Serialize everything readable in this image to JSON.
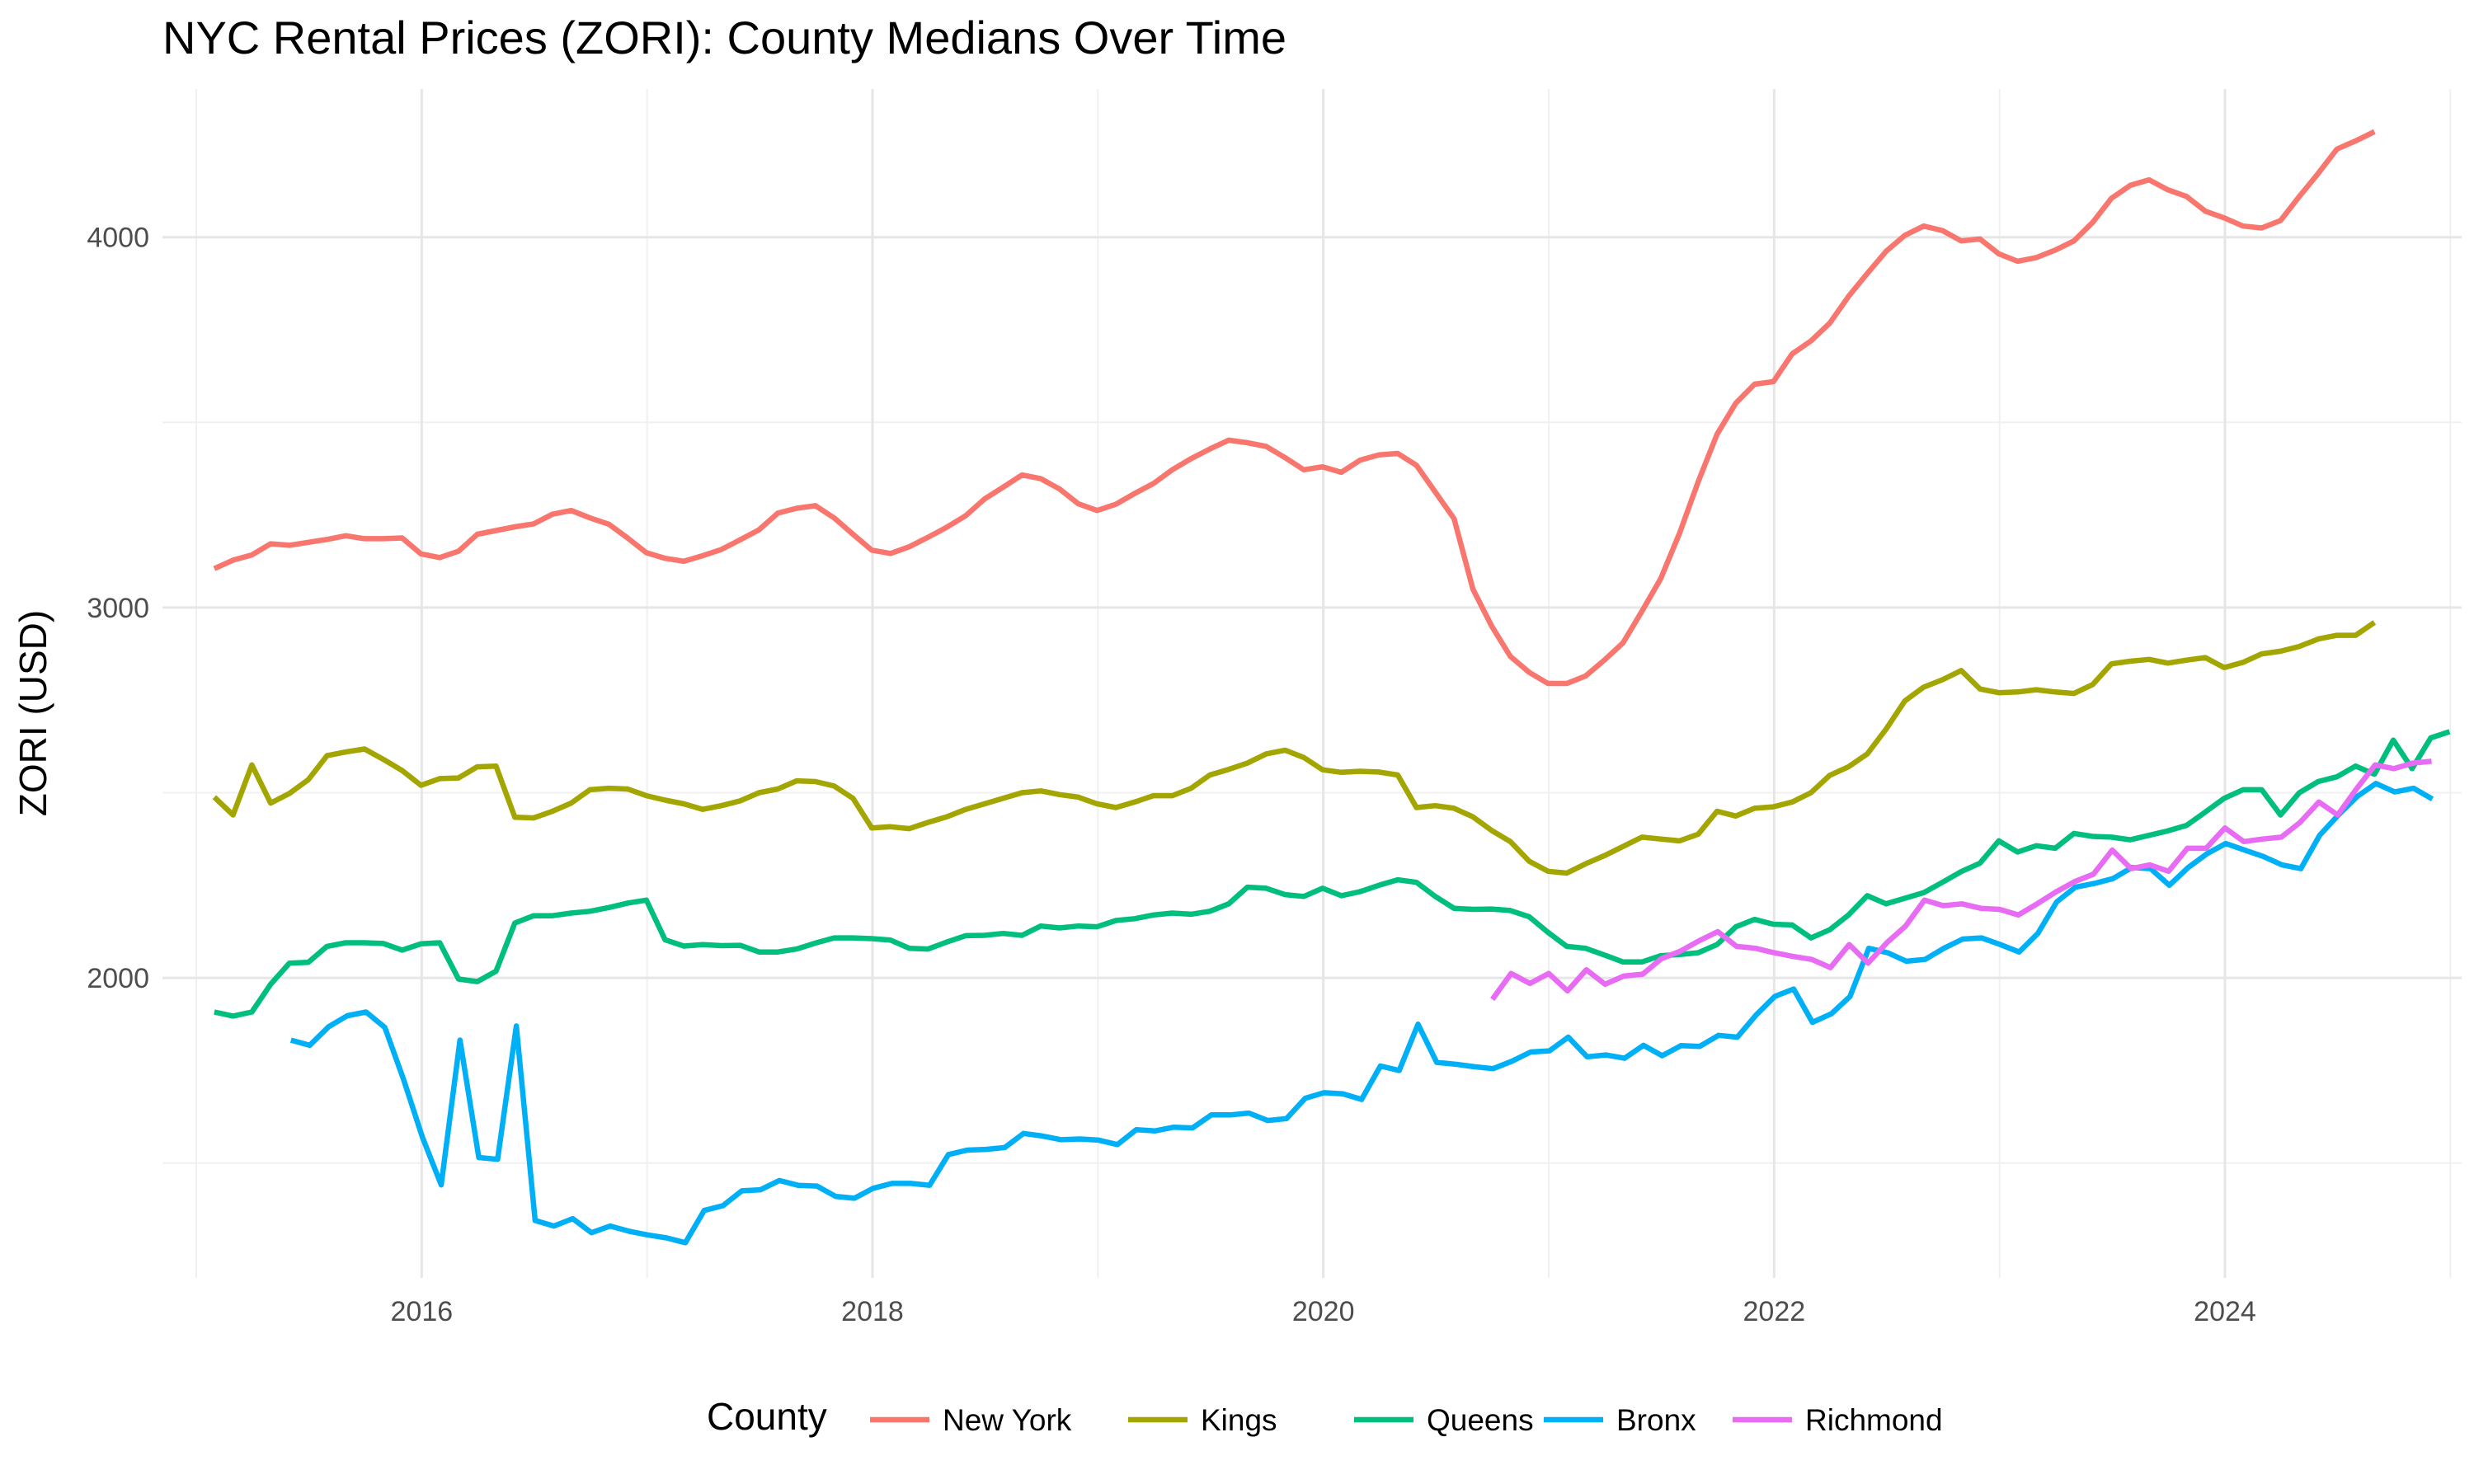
{
  "chart_data": {
    "type": "line",
    "title": "NYC Rental Prices (ZORI): County Medians Over Time",
    "xlabel": "",
    "ylabel": "ZORI (USD)",
    "xlim": [
      2014.85,
      2025.05
    ],
    "ylim": [
      1190,
      4400
    ],
    "x_ticks": [
      2016,
      2018,
      2020,
      2022,
      2024
    ],
    "x_tick_labels": [
      "2016",
      "2018",
      "2020",
      "2022",
      "2024"
    ],
    "y_ticks": [
      2000,
      3000,
      4000
    ],
    "y_tick_labels": [
      "2000",
      "3000",
      "4000"
    ],
    "grid": true,
    "legend": {
      "title": "County",
      "position": "bottom"
    },
    "series": [
      {
        "name": "New York",
        "color": "#F8766D",
        "start": 2015.08,
        "values": [
          3105,
          3128,
          3142,
          3172,
          3168,
          3176,
          3184,
          3194,
          3186,
          3186,
          3188,
          3145,
          3135,
          3152,
          3198,
          3208,
          3218,
          3226,
          3252,
          3262,
          3242,
          3225,
          3188,
          3148,
          3133,
          3125,
          3140,
          3157,
          3183,
          3210,
          3255,
          3268,
          3275,
          3242,
          3198,
          3155,
          3146,
          3164,
          3190,
          3217,
          3248,
          3293,
          3325,
          3358,
          3348,
          3320,
          3280,
          3262,
          3279,
          3308,
          3335,
          3372,
          3402,
          3428,
          3452,
          3445,
          3435,
          3405,
          3372,
          3380,
          3365,
          3398,
          3412,
          3416,
          3384,
          3312,
          3240,
          3050,
          2950,
          2868,
          2825,
          2795,
          2795,
          2815,
          2858,
          2905,
          2990,
          3078,
          3200,
          3340,
          3468,
          3552,
          3603,
          3610,
          3685,
          3720,
          3768,
          3840,
          3902,
          3962,
          4005,
          4030,
          4018,
          3990,
          3995,
          3955,
          3935,
          3945,
          3965,
          3990,
          4040,
          4105,
          4140,
          4155,
          4128,
          4110,
          4070,
          4052,
          4030,
          4025,
          4045,
          4110,
          4172,
          4238,
          4260,
          4285
        ]
      },
      {
        "name": "Kings",
        "color": "#A3A500",
        "start": 2015.08,
        "values": [
          2488,
          2440,
          2575,
          2472,
          2498,
          2535,
          2600,
          2610,
          2618,
          2590,
          2560,
          2520,
          2538,
          2540,
          2570,
          2572,
          2434,
          2432,
          2450,
          2472,
          2508,
          2512,
          2510,
          2492,
          2480,
          2470,
          2455,
          2465,
          2478,
          2500,
          2510,
          2532,
          2530,
          2518,
          2485,
          2405,
          2408,
          2403,
          2420,
          2435,
          2455,
          2470,
          2485,
          2500,
          2505,
          2495,
          2488,
          2470,
          2460,
          2475,
          2492,
          2492,
          2512,
          2548,
          2563,
          2580,
          2605,
          2615,
          2595,
          2562,
          2555,
          2558,
          2556,
          2548,
          2460,
          2465,
          2458,
          2435,
          2398,
          2368,
          2315,
          2288,
          2283,
          2308,
          2330,
          2355,
          2380,
          2375,
          2370,
          2388,
          2450,
          2437,
          2458,
          2462,
          2475,
          2500,
          2547,
          2570,
          2605,
          2672,
          2748,
          2785,
          2805,
          2830,
          2780,
          2770,
          2772,
          2778,
          2772,
          2768,
          2792,
          2848,
          2855,
          2860,
          2850,
          2858,
          2865,
          2838,
          2852,
          2875,
          2882,
          2895,
          2915,
          2925,
          2925,
          2960
        ]
      },
      {
        "name": "Queens",
        "color": "#00BF7D",
        "start": 2015.08,
        "values": [
          1908,
          1897,
          1908,
          1983,
          2040,
          2042,
          2085,
          2095,
          2095,
          2093,
          2075,
          2092,
          2095,
          1997,
          1990,
          2018,
          2148,
          2168,
          2168,
          2175,
          2180,
          2190,
          2202,
          2210,
          2103,
          2086,
          2090,
          2087,
          2088,
          2070,
          2070,
          2078,
          2094,
          2108,
          2108,
          2106,
          2102,
          2080,
          2078,
          2097,
          2114,
          2115,
          2120,
          2115,
          2140,
          2135,
          2140,
          2138,
          2155,
          2160,
          2170,
          2175,
          2172,
          2180,
          2200,
          2245,
          2242,
          2225,
          2220,
          2242,
          2222,
          2233,
          2250,
          2265,
          2258,
          2220,
          2188,
          2185,
          2186,
          2182,
          2165,
          2123,
          2085,
          2080,
          2062,
          2043,
          2043,
          2060,
          2063,
          2068,
          2090,
          2138,
          2158,
          2145,
          2143,
          2108,
          2130,
          2170,
          2222,
          2200,
          2215,
          2230,
          2258,
          2287,
          2310,
          2370,
          2340,
          2357,
          2350,
          2390,
          2382,
          2380,
          2373,
          2385,
          2397,
          2412,
          2448,
          2485,
          2508,
          2508,
          2440,
          2500,
          2530,
          2543,
          2572,
          2550,
          2642,
          2565,
          2648,
          2665
        ]
      },
      {
        "name": "Bronx",
        "color": "#00B0F6",
        "start": 2015.42,
        "values": [
          1832,
          1818,
          1868,
          1898,
          1908,
          1866,
          1725,
          1570,
          1441,
          1832,
          1515,
          1510,
          1870,
          1345,
          1330,
          1350,
          1312,
          1330,
          1316,
          1306,
          1298,
          1285,
          1372,
          1385,
          1425,
          1428,
          1453,
          1440,
          1438,
          1410,
          1405,
          1432,
          1445,
          1445,
          1440,
          1523,
          1535,
          1537,
          1542,
          1580,
          1573,
          1563,
          1565,
          1562,
          1550,
          1590,
          1587,
          1597,
          1595,
          1630,
          1630,
          1635,
          1615,
          1620,
          1675,
          1690,
          1687,
          1672,
          1762,
          1750,
          1875,
          1772,
          1767,
          1760,
          1755,
          1775,
          1800,
          1803,
          1840,
          1787,
          1792,
          1783,
          1818,
          1790,
          1817,
          1815,
          1845,
          1840,
          1900,
          1950,
          1970,
          1880,
          1903,
          1950,
          2080,
          2068,
          2045,
          2050,
          2080,
          2105,
          2108,
          2090,
          2070,
          2120,
          2205,
          2245,
          2255,
          2268,
          2298,
          2295,
          2250,
          2298,
          2335,
          2363,
          2345,
          2328,
          2305,
          2295,
          2385,
          2440,
          2490,
          2525,
          2502,
          2512,
          2483
        ]
      },
      {
        "name": "Richmond",
        "color": "#E76BF3",
        "start": 2020.75,
        "values": [
          1942,
          2012,
          1985,
          2012,
          1965,
          2022,
          1983,
          2005,
          2010,
          2052,
          2072,
          2100,
          2125,
          2085,
          2080,
          2068,
          2058,
          2050,
          2028,
          2090,
          2040,
          2095,
          2140,
          2210,
          2195,
          2200,
          2188,
          2185,
          2170,
          2200,
          2232,
          2260,
          2280,
          2345,
          2295,
          2305,
          2288,
          2350,
          2350,
          2405,
          2368,
          2375,
          2380,
          2420,
          2475,
          2440,
          2510,
          2575,
          2565,
          2580,
          2585
        ]
      }
    ]
  }
}
